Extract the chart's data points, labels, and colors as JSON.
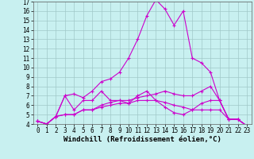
{
  "background_color": "#c8f0f0",
  "grid_color": "#a0c8c8",
  "line_color": "#cc00cc",
  "marker": "+",
  "markersize": 3,
  "linewidth": 0.8,
  "xlim": [
    -0.5,
    23.5
  ],
  "ylim": [
    4,
    17
  ],
  "xlabel": "Windchill (Refroidissement éolien,°C)",
  "xlabel_fontsize": 6.5,
  "tick_fontsize": 5.5,
  "xticks": [
    0,
    1,
    2,
    3,
    4,
    5,
    6,
    7,
    8,
    9,
    10,
    11,
    12,
    13,
    14,
    15,
    16,
    17,
    18,
    19,
    20,
    21,
    22,
    23
  ],
  "yticks": [
    4,
    5,
    6,
    7,
    8,
    9,
    10,
    11,
    12,
    13,
    14,
    15,
    16,
    17
  ],
  "series": [
    [
      4.3,
      4.0,
      4.8,
      7.0,
      7.2,
      6.8,
      7.5,
      8.5,
      8.8,
      9.5,
      11.0,
      13.0,
      15.5,
      17.2,
      16.2,
      14.5,
      16.0,
      11.0,
      10.5,
      9.5,
      6.5,
      4.5,
      4.5,
      3.8
    ],
    [
      4.3,
      4.0,
      4.8,
      7.0,
      5.5,
      6.5,
      6.5,
      7.5,
      6.5,
      6.5,
      6.2,
      7.0,
      7.5,
      6.5,
      5.8,
      5.2,
      5.0,
      5.5,
      6.2,
      6.5,
      6.5,
      4.5,
      4.5,
      3.8
    ],
    [
      4.3,
      4.0,
      4.8,
      5.0,
      5.0,
      5.5,
      5.5,
      6.0,
      6.3,
      6.5,
      6.5,
      6.8,
      7.0,
      7.2,
      7.5,
      7.2,
      7.0,
      7.0,
      7.5,
      8.0,
      6.5,
      4.5,
      4.5,
      3.8
    ],
    [
      4.3,
      4.0,
      4.8,
      5.0,
      5.0,
      5.5,
      5.5,
      5.8,
      6.0,
      6.2,
      6.2,
      6.5,
      6.5,
      6.5,
      6.3,
      6.0,
      5.8,
      5.5,
      5.5,
      5.5,
      5.5,
      4.5,
      4.5,
      3.8
    ]
  ]
}
